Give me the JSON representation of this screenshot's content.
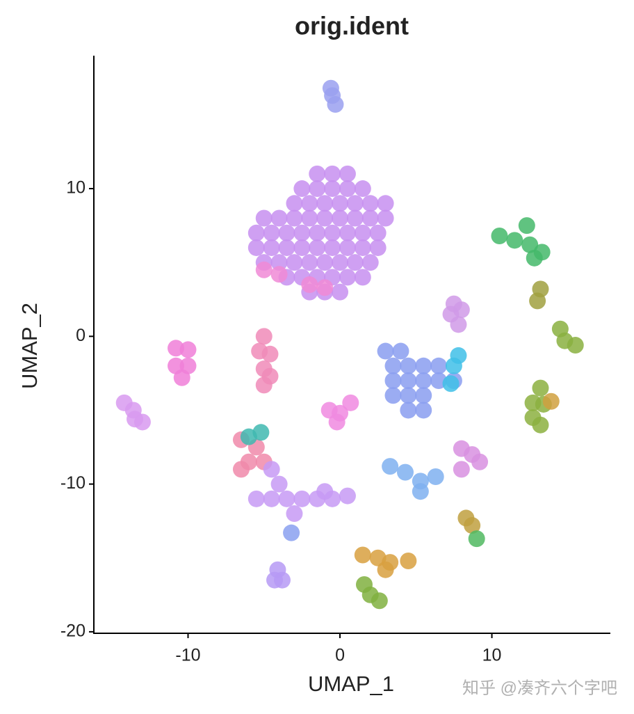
{
  "chart_data": {
    "type": "scatter",
    "title": "orig.ident",
    "x_label": "UMAP_1",
    "y_label": "UMAP_2",
    "xlim": [
      -16.2,
      17.8
    ],
    "ylim": [
      -20.1,
      19.0
    ],
    "xticks": [
      -10,
      0,
      10
    ],
    "yticks": [
      -20,
      -10,
      0,
      10
    ],
    "grid": false,
    "series": [
      {
        "color": "#9aa0f0",
        "x": [
          -0.6,
          -0.5,
          -0.3
        ],
        "values": [
          16.8,
          16.3,
          15.7
        ]
      },
      {
        "color": "#c78ff0",
        "x": [
          -1.5,
          -0.5,
          0.5,
          -2.5,
          -1.5,
          -0.5,
          0.5,
          1.5,
          -3,
          -2,
          -1,
          0,
          1,
          2,
          3,
          -5,
          -4,
          -3,
          -2,
          -1,
          0,
          1,
          2,
          3,
          -5.5,
          -4.5,
          -3.5,
          -2.5,
          -1.5,
          -0.5,
          0.5,
          1.5,
          2.5,
          -5.5,
          -4.5,
          -3.5,
          -2.5,
          -1.5,
          -0.5,
          0.5,
          1.5,
          2.5,
          -5,
          -4,
          -3,
          -2,
          -1,
          0,
          1,
          2,
          -3.5,
          -2.5,
          -1.5,
          -0.5,
          0.5,
          1.5,
          -2,
          -1,
          0
        ],
        "values": [
          11,
          11,
          11,
          10,
          10,
          10,
          10,
          10,
          9,
          9,
          9,
          9,
          9,
          9,
          9,
          8,
          8,
          8,
          8,
          8,
          8,
          8,
          8,
          8,
          7,
          7,
          7,
          7,
          7,
          7,
          7,
          7,
          7,
          6,
          6,
          6,
          6,
          6,
          6,
          6,
          6,
          6,
          5,
          5,
          5,
          5,
          5,
          5,
          5,
          5,
          4,
          4,
          4,
          4,
          4,
          4,
          3,
          3,
          3
        ]
      },
      {
        "color": "#f08ad6",
        "x": [
          -5,
          -2,
          -1,
          -4
        ],
        "values": [
          4.5,
          3.5,
          3.3,
          4.2
        ]
      },
      {
        "color": "#f07fd8",
        "x": [
          -10.8,
          -10,
          -10.8,
          -10,
          -10.4
        ],
        "values": [
          -0.8,
          -0.9,
          -2,
          -2,
          -2.8
        ]
      },
      {
        "color": "#d89af0",
        "x": [
          -14.2,
          -13.6,
          -13,
          -13.5
        ],
        "values": [
          -4.5,
          -5,
          -5.8,
          -5.6
        ]
      },
      {
        "color": "#f08bb8",
        "x": [
          -5,
          -5.3,
          -4.6,
          -5,
          -4.6,
          -5
        ],
        "values": [
          0,
          -1,
          -1.2,
          -2.2,
          -2.7,
          -3.3
        ]
      },
      {
        "color": "#f08ae0",
        "x": [
          -0.7,
          0,
          -0.2,
          0.7
        ],
        "values": [
          -5,
          -5.2,
          -5.8,
          -4.5
        ]
      },
      {
        "color": "#8a9ef0",
        "x": [
          3,
          4,
          3.5,
          4.5,
          5.5,
          6.5,
          3.5,
          4.5,
          5.5,
          6.5,
          7.5,
          3.5,
          4.5,
          5.5,
          4.5,
          5.5
        ],
        "values": [
          -1,
          -1,
          -2,
          -2,
          -2,
          -2,
          -3,
          -3,
          -3,
          -3,
          -3,
          -4,
          -4,
          -4,
          -5,
          -5
        ]
      },
      {
        "color": "#40c0e8",
        "x": [
          7.5,
          7.8,
          7.3
        ],
        "values": [
          -2,
          -1.3,
          -3.2
        ]
      },
      {
        "color": "#d09ae8",
        "x": [
          7.5,
          7.3,
          8,
          7.8
        ],
        "values": [
          2.2,
          1.5,
          1.8,
          0.8
        ]
      },
      {
        "color": "#f08aaa",
        "x": [
          -6.5,
          -5.5,
          -6,
          -5,
          -6.5
        ],
        "values": [
          -7,
          -7.5,
          -8.5,
          -8.5,
          -9
        ]
      },
      {
        "color": "#40b8b0",
        "x": [
          -6,
          -5.2
        ],
        "values": [
          -6.8,
          -6.5
        ]
      },
      {
        "color": "#c79af4",
        "x": [
          -5.5,
          -4.5,
          -3.5,
          -2.5,
          -1.5,
          -0.5,
          0.5,
          -1,
          -4,
          -4.5,
          -3
        ],
        "values": [
          -11,
          -11,
          -11,
          -11,
          -11,
          -11,
          -10.8,
          -10.5,
          -10,
          -9,
          -12
        ]
      },
      {
        "color": "#b69af5",
        "x": [
          -4.1,
          -3.8,
          -4.3
        ],
        "values": [
          -15.8,
          -16.5,
          -16.5
        ]
      },
      {
        "color": "#8aa0f0",
        "x": [
          -3.2
        ],
        "values": [
          -13.3
        ]
      },
      {
        "color": "#7fb0f0",
        "x": [
          3.3,
          4.3,
          5.3,
          5.3,
          6.3
        ],
        "values": [
          -8.8,
          -9.2,
          -9.8,
          -10.5,
          -9.5
        ]
      },
      {
        "color": "#d890e0",
        "x": [
          8,
          8.7,
          9.2,
          8
        ],
        "values": [
          -7.6,
          -8,
          -8.5,
          -9
        ]
      },
      {
        "color": "#44b86a",
        "x": [
          10.5,
          11.5,
          12.3,
          12.5,
          13.3,
          12.8
        ],
        "values": [
          6.8,
          6.5,
          7.5,
          6.2,
          5.7,
          5.3
        ]
      },
      {
        "color": "#a0a040",
        "x": [
          13,
          13.2
        ],
        "values": [
          2.4,
          3.2
        ]
      },
      {
        "color": "#8ab040",
        "x": [
          14.8,
          15.5,
          14.5
        ],
        "values": [
          -0.3,
          -0.6,
          0.5
        ]
      },
      {
        "color": "#8cb040",
        "x": [
          13.2,
          12.7,
          13.4,
          12.7,
          13.2
        ],
        "values": [
          -3.5,
          -4.5,
          -4.6,
          -5.5,
          -6
        ]
      },
      {
        "color": "#d0a040",
        "x": [
          13.9
        ],
        "values": [
          -4.4
        ]
      },
      {
        "color": "#c0a040",
        "x": [
          8.7,
          8.3
        ],
        "values": [
          -12.8,
          -12.3
        ]
      },
      {
        "color": "#50b860",
        "x": [
          9
        ],
        "values": [
          -13.7
        ]
      },
      {
        "color": "#d8a040",
        "x": [
          1.5,
          2.5,
          3.3,
          4.5,
          3
        ],
        "values": [
          -14.8,
          -15,
          -15.3,
          -15.2,
          -15.8
        ]
      },
      {
        "color": "#80b040",
        "x": [
          1.6,
          2,
          2.6
        ],
        "values": [
          -16.8,
          -17.5,
          -17.9
        ]
      }
    ]
  },
  "watermark": "知乎 @凑齐六个字吧"
}
